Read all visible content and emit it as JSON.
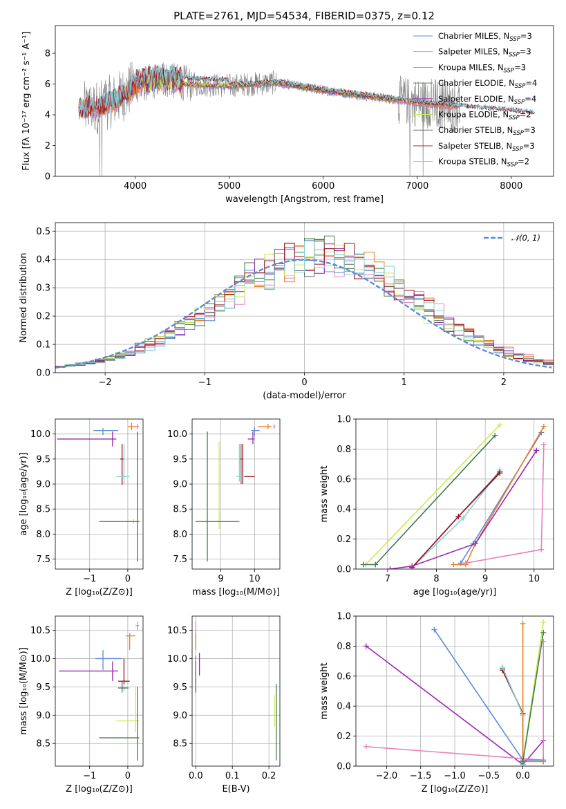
{
  "figure": {
    "title": "PLATE=2761, MJD=54534, FIBERID=0375, z=0.12"
  },
  "colors": {
    "Chabrier MILES": "#5b8bd8",
    "Salpeter MILES": "#e582b8",
    "Kroupa MILES": "#ee7a1c",
    "Chabrier ELODIE": "#3f7a4a",
    "Salpeter ELODIE": "#9b27b0",
    "Kroupa ELODIE": "#c9ec4a",
    "Chabrier STELIB": "#666666",
    "Salpeter STELIB": "#a01020",
    "Kroupa STELIB": "#86d0d8",
    "gaussian": "#5b8bd8"
  },
  "chart_data": [
    {
      "id": "spectrum",
      "type": "line",
      "xlabel": "wavelength [Angstrom, rest frame]",
      "ylabel": "Flux [fλ 10⁻¹⁷ erg cm⁻² s⁻¹ A⁻¹]",
      "xlim": [
        3150,
        8450
      ],
      "ylim": [
        0,
        9.8
      ],
      "xticks": [
        4000,
        5000,
        6000,
        7000,
        8000
      ],
      "yticks": [
        0,
        2,
        4,
        6,
        8
      ],
      "legend_position": "upper-right",
      "legend": [
        {
          "label": "Chabrier MILES, N",
          "sub": "SSP",
          "suffix": "=3"
        },
        {
          "label": "Salpeter MILES, N",
          "sub": "SSP",
          "suffix": "=3"
        },
        {
          "label": "Kroupa MILES, N",
          "sub": "SSP",
          "suffix": "=3"
        },
        {
          "label": "Chabrier ELODIE, N",
          "sub": "SSP",
          "suffix": "=4"
        },
        {
          "label": "Salpeter ELODIE, N",
          "sub": "SSP",
          "suffix": "=4"
        },
        {
          "label": "Kroupa ELODIE, N",
          "sub": "SSP",
          "suffix": "=2"
        },
        {
          "label": "Chabrier STELIB, N",
          "sub": "SSP",
          "suffix": "=3"
        },
        {
          "label": "Salpeter STELIB, N",
          "sub": "SSP",
          "suffix": "=3"
        },
        {
          "label": "Kroupa STELIB, N",
          "sub": "SSP",
          "suffix": "=2"
        }
      ],
      "continuum": [
        [
          3400,
          4.4
        ],
        [
          3600,
          4.5
        ],
        [
          3800,
          5.0
        ],
        [
          4000,
          5.9
        ],
        [
          4300,
          6.3
        ],
        [
          4600,
          6.0
        ],
        [
          5000,
          5.9
        ],
        [
          5500,
          6.1
        ],
        [
          5800,
          5.8
        ],
        [
          6000,
          5.6
        ],
        [
          6500,
          5.2
        ],
        [
          7000,
          4.8
        ],
        [
          7500,
          4.5
        ],
        [
          8000,
          4.25
        ],
        [
          8200,
          4.1
        ]
      ]
    },
    {
      "id": "residuals",
      "type": "histogram",
      "xlabel": "(data-model)/error",
      "ylabel": "Normed distribution",
      "xlim": [
        -2.5,
        2.5
      ],
      "ylim": [
        0,
        0.53
      ],
      "xticks": [
        -2,
        -1,
        0,
        1,
        2
      ],
      "yticks": [
        0.0,
        0.1,
        0.2,
        0.3,
        0.4,
        0.5
      ],
      "bin_width": 0.1,
      "legend_label": "𝒩(0, 1)",
      "legend_position": "upper-right",
      "series": [
        {
          "name": "Chabrier MILES",
          "peak": 0.4,
          "width": 0.95,
          "center": 0.15
        },
        {
          "name": "Salpeter MILES",
          "peak": 0.39,
          "width": 1.0,
          "center": 0.2
        },
        {
          "name": "Kroupa MILES",
          "peak": 0.4,
          "width": 1.0,
          "center": 0.2
        },
        {
          "name": "Chabrier ELODIE",
          "peak": 0.41,
          "width": 0.97,
          "center": 0.1
        },
        {
          "name": "Salpeter ELODIE",
          "peak": 0.41,
          "width": 0.97,
          "center": 0.15
        },
        {
          "name": "Kroupa ELODIE",
          "peak": 0.4,
          "width": 0.97,
          "center": 0.1
        },
        {
          "name": "Chabrier STELIB",
          "peak": 0.4,
          "width": 0.97,
          "center": 0.15
        },
        {
          "name": "Salpeter STELIB",
          "peak": 0.4,
          "width": 0.97,
          "center": 0.15
        },
        {
          "name": "Kroupa STELIB",
          "peak": 0.4,
          "width": 0.97,
          "center": 0.2
        }
      ]
    },
    {
      "id": "age-vs-Z",
      "type": "scatter",
      "xlabel": "Z [log₁₀(Z/Z⊙)]",
      "ylabel": "age  [log₁₀(age/yr)]",
      "xlim": [
        -1.9,
        0.4
      ],
      "ylim": [
        7.3,
        10.3
      ],
      "xticks": [
        -1,
        0
      ],
      "yticks": [
        7.5,
        8.0,
        8.5,
        9.0,
        9.5,
        10.0
      ],
      "points": [
        {
          "s": "Chabrier MILES",
          "x": -0.65,
          "y": 10.07,
          "xe": [
            -0.9,
            -0.25
          ],
          "ye": [
            9.98,
            10.12
          ]
        },
        {
          "s": "Kroupa MILES",
          "x": 0.1,
          "y": 10.15,
          "xe": [
            0.0,
            0.25
          ],
          "ye": [
            10.08,
            10.22
          ]
        },
        {
          "s": "Salpeter MILES",
          "x": 0.25,
          "y": 10.15,
          "xe": [
            0.2,
            0.3
          ],
          "ye": [
            10.1,
            10.2
          ]
        },
        {
          "s": "Salpeter ELODIE",
          "x": -0.4,
          "y": 9.9,
          "xe": [
            -1.85,
            -0.3
          ],
          "ye": [
            9.75,
            10.05
          ]
        },
        {
          "s": "Salpeter STELIB",
          "x": -0.15,
          "y": 9.5,
          "xe": [
            -0.2,
            -0.1
          ],
          "ye": [
            8.98,
            9.8
          ]
        },
        {
          "s": "Kroupa STELIB",
          "x": -0.1,
          "y": 9.15,
          "xe": [
            -0.3,
            0.05
          ],
          "ye": [
            9.0,
            9.8
          ]
        },
        {
          "s": "Kroupa ELODIE",
          "x": 0.15,
          "y": 8.25,
          "xe": [
            -0.05,
            0.35
          ],
          "ye": [
            8.2,
            8.3
          ]
        },
        {
          "s": "Chabrier ELODIE",
          "x": 0.25,
          "y": 8.25,
          "xe": [
            -0.75,
            0.3
          ],
          "ye": [
            7.45,
            10.05
          ]
        }
      ]
    },
    {
      "id": "age-vs-mass",
      "type": "scatter",
      "xlabel": "mass [log₁₀(M/M⊙)]",
      "ylabel": "",
      "xlim": [
        8.15,
        10.75
      ],
      "ylim": [
        7.3,
        10.3
      ],
      "xticks": [
        9,
        10
      ],
      "yticks": [
        7.5,
        8.0,
        8.5,
        9.0,
        9.5,
        10.0
      ],
      "points": [
        {
          "s": "Chabrier MILES",
          "x": 10.0,
          "y": 10.07,
          "xe": [
            9.9,
            10.15
          ],
          "ye": [
            9.95,
            10.15
          ]
        },
        {
          "s": "Kroupa MILES",
          "x": 10.4,
          "y": 10.15,
          "xe": [
            10.1,
            10.5
          ],
          "ye": [
            10.1,
            10.2
          ]
        },
        {
          "s": "Salpeter MILES",
          "x": 10.58,
          "y": 10.15,
          "xe": [
            10.55,
            10.62
          ],
          "ye": [
            10.1,
            10.2
          ]
        },
        {
          "s": "Salpeter ELODIE",
          "x": 9.95,
          "y": 9.9,
          "xe": [
            9.8,
            10.0
          ],
          "ye": [
            9.8,
            10.05
          ]
        },
        {
          "s": "Chabrier STELIB",
          "x": 9.6,
          "y": 9.5,
          "xe": [
            9.55,
            9.65
          ],
          "ye": [
            9.0,
            9.8
          ]
        },
        {
          "s": "Salpeter STELIB",
          "x": 9.65,
          "y": 9.15,
          "xe": [
            9.6,
            10.0
          ],
          "ye": [
            9.0,
            9.8
          ]
        },
        {
          "s": "Kroupa STELIB",
          "x": 9.55,
          "y": 9.15,
          "xe": [
            9.45,
            9.7
          ],
          "ye": [
            9.05,
            9.8
          ]
        },
        {
          "s": "Kroupa ELODIE",
          "x": 8.95,
          "y": 8.25,
          "xe": [
            8.9,
            9.0
          ],
          "ye": [
            8.1,
            9.85
          ]
        },
        {
          "s": "Chabrier ELODIE",
          "x": 8.6,
          "y": 8.25,
          "xe": [
            8.25,
            9.55
          ],
          "ye": [
            7.45,
            10.05
          ]
        }
      ]
    },
    {
      "id": "weight-vs-age",
      "type": "line",
      "xlabel": "age  [log₁₀(age/yr)]",
      "ylabel": "mass weight",
      "xlim": [
        6.35,
        10.4
      ],
      "ylim": [
        0,
        1.0
      ],
      "xticks": [
        7,
        8,
        9,
        10
      ],
      "yticks": [
        0.0,
        0.2,
        0.4,
        0.6,
        0.8,
        1.0
      ],
      "series": [
        {
          "name": "Kroupa ELODIE",
          "points": [
            [
              6.55,
              0.03
            ],
            [
              9.3,
              0.96
            ]
          ]
        },
        {
          "name": "Chabrier ELODIE",
          "points": [
            [
              6.5,
              0.03
            ],
            [
              6.75,
              0.03
            ],
            [
              9.2,
              0.89
            ]
          ]
        },
        {
          "name": "Kroupa STELIB",
          "points": [
            [
              7.5,
              0.01
            ],
            [
              8.55,
              0.34
            ],
            [
              9.3,
              0.66
            ]
          ]
        },
        {
          "name": "Chabrier STELIB",
          "points": [
            [
              7.5,
              0.01
            ],
            [
              8.45,
              0.35
            ],
            [
              9.3,
              0.65
            ]
          ]
        },
        {
          "name": "Salpeter STELIB",
          "points": [
            [
              7.5,
              0.01
            ],
            [
              8.45,
              0.35
            ],
            [
              9.3,
              0.64
            ]
          ]
        },
        {
          "name": "Chabrier MILES",
          "points": [
            [
              8.5,
              0.04
            ],
            [
              8.75,
              0.17
            ],
            [
              10.15,
              0.91
            ]
          ]
        },
        {
          "name": "Kroupa MILES",
          "points": [
            [
              8.35,
              0.03
            ],
            [
              8.6,
              0.03
            ],
            [
              8.8,
              0.17
            ],
            [
              10.2,
              0.95
            ]
          ]
        },
        {
          "name": "Salpeter ELODIE",
          "points": [
            [
              7.05,
              0.0
            ],
            [
              7.5,
              0.02
            ],
            [
              8.8,
              0.17
            ],
            [
              10.05,
              0.79
            ]
          ]
        },
        {
          "name": "Salpeter MILES",
          "points": [
            [
              8.6,
              0.04
            ],
            [
              10.15,
              0.13
            ],
            [
              10.2,
              0.83
            ]
          ]
        }
      ]
    },
    {
      "id": "mass-vs-Z",
      "type": "scatter",
      "xlabel": "Z [log₁₀(Z/Z⊙)]",
      "ylabel": "mass [log₁₀(M/M⊙)]",
      "xlim": [
        -1.9,
        0.4
      ],
      "ylim": [
        8.1,
        10.75
      ],
      "xticks": [
        -1,
        0
      ],
      "yticks": [
        8.5,
        9.0,
        9.5,
        10.0,
        10.5
      ],
      "points": [
        {
          "s": "Salpeter MILES",
          "x": 0.25,
          "y": 10.58,
          "xe": [
            0.2,
            0.3
          ],
          "ye": [
            10.5,
            10.65
          ]
        },
        {
          "s": "Kroupa MILES",
          "x": 0.05,
          "y": 10.4,
          "xe": [
            -0.05,
            0.2
          ],
          "ye": [
            10.15,
            10.45
          ]
        },
        {
          "s": "Chabrier MILES",
          "x": -0.65,
          "y": 10.0,
          "xe": [
            -0.85,
            -0.15
          ],
          "ye": [
            9.8,
            10.15
          ]
        },
        {
          "s": "Salpeter ELODIE",
          "x": -0.4,
          "y": 9.78,
          "xe": [
            -1.8,
            -0.25
          ],
          "ye": [
            9.6,
            9.95
          ]
        },
        {
          "s": "Salpeter STELIB",
          "x": -0.1,
          "y": 9.6,
          "xe": [
            -0.25,
            0.05
          ],
          "ye": [
            9.55,
            10.0
          ]
        },
        {
          "s": "Kroupa STELIB",
          "x": -0.1,
          "y": 9.48,
          "xe": [
            -0.25,
            0.05
          ],
          "ye": [
            9.42,
            9.55
          ]
        },
        {
          "s": "Chabrier STELIB",
          "x": -0.15,
          "y": 9.48,
          "xe": [
            -0.25,
            0.0
          ],
          "ye": [
            9.4,
            9.6
          ]
        },
        {
          "s": "Kroupa ELODIE",
          "x": 0.2,
          "y": 8.9,
          "xe": [
            -0.3,
            0.3
          ],
          "ye": [
            8.7,
            9.5
          ]
        },
        {
          "s": "Chabrier ELODIE",
          "x": 0.25,
          "y": 8.6,
          "xe": [
            -0.75,
            0.3
          ],
          "ye": [
            8.2,
            9.5
          ]
        }
      ]
    },
    {
      "id": "mass-vs-EBV",
      "type": "scatter",
      "xlabel": "E(B-V)",
      "ylabel": "",
      "xlim": [
        -0.01,
        0.23
      ],
      "ylim": [
        8.1,
        10.75
      ],
      "xticks": [
        0.0,
        0.1,
        0.2
      ],
      "yticks": [
        8.5,
        9.0,
        9.5,
        10.0,
        10.5
      ],
      "points": [
        {
          "s": "Salpeter MILES",
          "x": 0.0,
          "y": 10.4,
          "xe": [
            0.0,
            0.0
          ],
          "ye": [
            10.15,
            10.65
          ]
        },
        {
          "s": "Kroupa MILES",
          "x": 0.0,
          "y": 10.2,
          "xe": [
            0.0,
            0.0
          ],
          "ye": [
            10.15,
            10.45
          ]
        },
        {
          "s": "Chabrier MILES",
          "x": 0.0,
          "y": 9.9,
          "xe": [
            0.0,
            0.0
          ],
          "ye": [
            9.6,
            10.05
          ]
        },
        {
          "s": "Salpeter ELODIE",
          "x": 0.01,
          "y": 9.9,
          "xe": [
            0.01,
            0.01
          ],
          "ye": [
            9.7,
            10.1
          ]
        },
        {
          "s": "Kroupa STELIB",
          "x": 0.0,
          "y": 9.55,
          "xe": [
            0.0,
            0.0
          ],
          "ye": [
            9.4,
            9.95
          ]
        },
        {
          "s": "Chabrier STELIB",
          "x": 0.0,
          "y": 9.7,
          "xe": [
            0.0,
            0.0
          ],
          "ye": [
            9.4,
            9.95
          ]
        },
        {
          "s": "Kroupa ELODIE",
          "x": 0.215,
          "y": 9.05,
          "xe": [
            0.215,
            0.215
          ],
          "ye": [
            8.8,
            9.35
          ]
        },
        {
          "s": "Chabrier ELODIE",
          "x": 0.22,
          "y": 8.9,
          "xe": [
            0.22,
            0.22
          ],
          "ye": [
            8.2,
            9.55
          ]
        }
      ]
    },
    {
      "id": "weight-vs-Z",
      "type": "line",
      "xlabel": "Z [log₁₀(Z/Z⊙)]",
      "ylabel": "mass weight",
      "xlim": [
        -2.45,
        0.45
      ],
      "ylim": [
        0,
        1.0
      ],
      "xticks": [
        -2.0,
        -1.5,
        -1.0,
        -0.5,
        0.0
      ],
      "xtick_labels": [
        "−2.0",
        "−1.5",
        "−1.0",
        "−0.5",
        "0.0"
      ],
      "yticks": [
        0.0,
        0.2,
        0.4,
        0.6,
        0.8,
        1.0
      ],
      "series": [
        {
          "name": "Salpeter ELODIE",
          "points": [
            [
              -2.3,
              0.8
            ],
            [
              0.0,
              0.01
            ],
            [
              0.3,
              0.17
            ]
          ]
        },
        {
          "name": "Salpeter MILES",
          "points": [
            [
              -2.3,
              0.13
            ],
            [
              0.3,
              0.04
            ],
            [
              0.3,
              0.83
            ]
          ]
        },
        {
          "name": "Chabrier MILES",
          "points": [
            [
              -1.3,
              0.91
            ],
            [
              0.0,
              0.04
            ],
            [
              0.3,
              0.04
            ]
          ]
        },
        {
          "name": "Chabrier STELIB",
          "points": [
            [
              -0.3,
              0.65
            ],
            [
              0.0,
              0.35
            ],
            [
              0.0,
              0.01
            ]
          ]
        },
        {
          "name": "Salpeter STELIB",
          "points": [
            [
              -0.3,
              0.64
            ],
            [
              0.0,
              0.35
            ],
            [
              0.0,
              0.01
            ]
          ]
        },
        {
          "name": "Kroupa STELIB",
          "points": [
            [
              -0.3,
              0.66
            ],
            [
              0.0,
              0.34
            ],
            [
              0.0,
              0.01
            ]
          ]
        },
        {
          "name": "Kroupa MILES",
          "points": [
            [
              0.0,
              0.95
            ],
            [
              0.0,
              0.03
            ],
            [
              0.3,
              0.03
            ]
          ]
        },
        {
          "name": "Kroupa ELODIE",
          "points": [
            [
              0.0,
              0.03
            ],
            [
              0.3,
              0.96
            ]
          ]
        },
        {
          "name": "Chabrier ELODIE",
          "points": [
            [
              0.0,
              0.03
            ],
            [
              0.3,
              0.89
            ]
          ]
        }
      ]
    }
  ]
}
